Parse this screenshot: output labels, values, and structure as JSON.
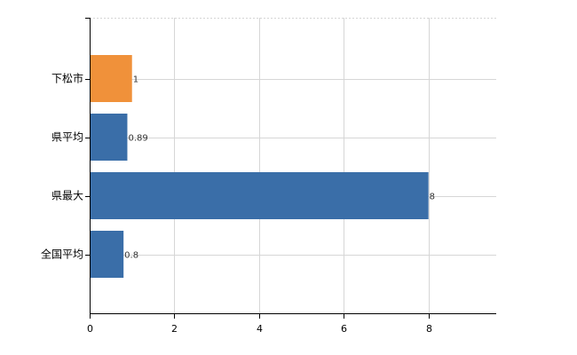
{
  "chart_data": {
    "type": "bar",
    "orientation": "horizontal",
    "categories": [
      "下松市",
      "県平均",
      "県最大",
      "全国平均"
    ],
    "values": [
      1,
      0.89,
      8,
      0.8
    ],
    "data_labels": [
      "1",
      "0.89",
      "8",
      "0.8"
    ],
    "bar_colors": [
      "#f0913a",
      "#3a6ea8",
      "#3a6ea8",
      "#3a6ea8"
    ],
    "xlim": [
      0,
      9.6
    ],
    "x_ticks": [
      0,
      2,
      4,
      6,
      8
    ],
    "x_tick_labels": [
      "0",
      "2",
      "4",
      "6",
      "8"
    ],
    "grid": true,
    "legend": "none"
  }
}
